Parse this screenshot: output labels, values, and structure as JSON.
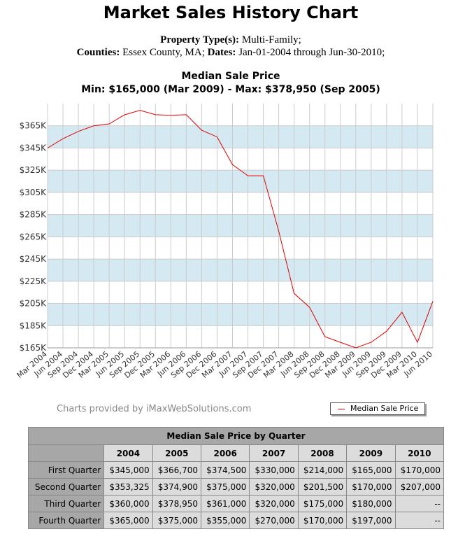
{
  "page": {
    "title": "Market Sales History Chart",
    "meta": {
      "ptype_label": "Property Type(s):",
      "ptype_value": " Multi-Family;",
      "counties_label": "Counties:",
      "counties_value": " Essex County, MA;",
      "dates_label": " Dates:",
      "dates_value": " Jan-01-2004 through Jun-30-2010;"
    },
    "chart_title": "Median Sale Price",
    "chart_subtitle": "Min: $165,000 (Mar 2009) - Max: $378,950 (Sep 2005)",
    "credit": "Charts provided by iMaxWebSolutions.com",
    "legend_label": "Median Sale Price"
  },
  "colors": {
    "line": "#e00000",
    "band": "#d4e9f1",
    "grid": "#cccccc"
  },
  "chart_data": {
    "type": "line",
    "title": "Median Sale Price",
    "subtitle": "Min: $165,000 (Mar 2009) - Max: $378,950 (Sep 2005)",
    "x": [
      "Mar 2004",
      "Jun 2004",
      "Sep 2004",
      "Dec 2004",
      "Mar 2005",
      "Jun 2005",
      "Sep 2005",
      "Dec 2005",
      "Mar 2006",
      "Jun 2006",
      "Sep 2006",
      "Dec 2006",
      "Mar 2007",
      "Jun 2007",
      "Sep 2007",
      "Dec 2007",
      "Mar 2008",
      "Jun 2008",
      "Sep 2008",
      "Dec 2008",
      "Mar 2009",
      "Jun 2009",
      "Sep 2009",
      "Dec 2009",
      "Mar 2010",
      "Jun 2010"
    ],
    "series": [
      {
        "name": "Median Sale Price",
        "values": [
          345000,
          353325,
          360000,
          365000,
          366700,
          374900,
          378950,
          375000,
          374500,
          375000,
          361000,
          355000,
          330000,
          320000,
          320000,
          270000,
          214000,
          201500,
          175000,
          170000,
          165000,
          170000,
          180000,
          197000,
          170000,
          207000
        ]
      }
    ],
    "y_ticks": [
      "$165K",
      "$185K",
      "$205K",
      "$225K",
      "$245K",
      "$265K",
      "$285K",
      "$305K",
      "$325K",
      "$345K",
      "$365K"
    ],
    "ylim": [
      165000,
      385000
    ],
    "grid": true,
    "legend": "bottom-right"
  },
  "table": {
    "caption": "Median Sale Price by Quarter",
    "years": [
      "2004",
      "2005",
      "2006",
      "2007",
      "2008",
      "2009",
      "2010"
    ],
    "rows": [
      {
        "label": "First Quarter",
        "values": [
          "$345,000",
          "$366,700",
          "$374,500",
          "$330,000",
          "$214,000",
          "$165,000",
          "$170,000"
        ]
      },
      {
        "label": "Second Quarter",
        "values": [
          "$353,325",
          "$374,900",
          "$375,000",
          "$320,000",
          "$201,500",
          "$170,000",
          "$207,000"
        ]
      },
      {
        "label": "Third Quarter",
        "values": [
          "$360,000",
          "$378,950",
          "$361,000",
          "$320,000",
          "$175,000",
          "$180,000",
          "--"
        ]
      },
      {
        "label": "Fourth Quarter",
        "values": [
          "$365,000",
          "$375,000",
          "$355,000",
          "$270,000",
          "$170,000",
          "$197,000",
          "--"
        ]
      }
    ]
  }
}
